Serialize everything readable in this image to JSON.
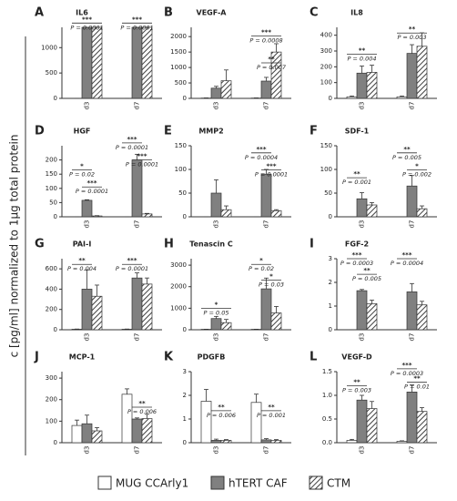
{
  "ylabel": "c [pg/ml] normalized to 1µg total protein",
  "chart_data": [
    {
      "type": "bar",
      "letter": "A",
      "title": "IL6",
      "categories": [
        "d3",
        "d7"
      ],
      "ylim": [
        0,
        1400
      ],
      "yticks": [
        0,
        500,
        1000
      ],
      "series": [
        {
          "name": "MUG CCArly1",
          "color": "#ffffff",
          "values": [
            0,
            0
          ],
          "errors": [
            0,
            0
          ]
        },
        {
          "name": "hTERT CAF",
          "color": "#808080",
          "values": [
            1400,
            1400
          ],
          "errors": [
            0,
            0
          ]
        },
        {
          "name": "CTM",
          "color": "#404040",
          "pattern": "hatch",
          "values": [
            1400,
            1400
          ],
          "errors": [
            0,
            0
          ]
        }
      ],
      "annotations": [
        {
          "stars": "***",
          "label": "P = 0.0001"
        },
        {
          "stars": "***",
          "label": "P = 0.0001"
        }
      ]
    },
    {
      "type": "bar",
      "letter": "B",
      "title": "VEGF-A",
      "categories": [
        "d3",
        "d7"
      ],
      "ylim": [
        0,
        2300
      ],
      "yticks": [
        0,
        500,
        1000,
        1500,
        2000
      ],
      "series": [
        {
          "name": "MUG CCArly1",
          "color": "#ffffff",
          "values": [
            10,
            10
          ],
          "errors": [
            5,
            5
          ]
        },
        {
          "name": "hTERT CAF",
          "color": "#808080",
          "values": [
            330,
            560
          ],
          "errors": [
            60,
            120
          ]
        },
        {
          "name": "CTM",
          "color": "#404040",
          "pattern": "hatch",
          "values": [
            570,
            1500
          ],
          "errors": [
            350,
            270
          ]
        }
      ],
      "annotations": [
        {
          "stars": "**",
          "label": "P = 0.007"
        },
        {
          "stars": "***",
          "label": "P = 0.0008"
        }
      ]
    },
    {
      "type": "bar",
      "letter": "C",
      "title": "IL8",
      "categories": [
        "d3",
        "d7"
      ],
      "ylim": [
        0,
        450
      ],
      "yticks": [
        0,
        100,
        200,
        300,
        400
      ],
      "series": [
        {
          "name": "MUG CCArly1",
          "color": "#ffffff",
          "values": [
            10,
            10
          ],
          "errors": [
            5,
            5
          ]
        },
        {
          "name": "hTERT CAF",
          "color": "#808080",
          "values": [
            160,
            285
          ],
          "errors": [
            45,
            55
          ]
        },
        {
          "name": "CTM",
          "color": "#404040",
          "pattern": "hatch",
          "values": [
            165,
            330
          ],
          "errors": [
            45,
            85
          ]
        }
      ],
      "annotations": [
        {
          "stars": "**",
          "label": "P = 0.004"
        },
        {
          "stars": "**",
          "label": "P = 0.003"
        }
      ]
    },
    {
      "type": "bar",
      "letter": "D",
      "title": "HGF",
      "categories": [
        "d3",
        "d7"
      ],
      "ylim": [
        0,
        250
      ],
      "yticks": [
        0,
        50,
        100,
        150,
        200
      ],
      "series": [
        {
          "name": "MUG CCArly1",
          "color": "#ffffff",
          "values": [
            0,
            0
          ],
          "errors": [
            0,
            0
          ]
        },
        {
          "name": "hTERT CAF",
          "color": "#808080",
          "values": [
            58,
            200
          ],
          "errors": [
            2,
            20
          ]
        },
        {
          "name": "CTM",
          "color": "#404040",
          "pattern": "hatch",
          "values": [
            3,
            10
          ],
          "errors": [
            1,
            2
          ]
        }
      ],
      "annotations": [
        {
          "stars": "*",
          "label": "P = 0.02"
        },
        {
          "stars": "***",
          "label": "P = 0.0001"
        },
        {
          "stars": "***",
          "label": "P = 0.0001"
        },
        {
          "stars": "***",
          "label": "P = 0.0001"
        }
      ]
    },
    {
      "type": "bar",
      "letter": "E",
      "title": "MMP2",
      "categories": [
        "d3",
        "d7"
      ],
      "ylim": [
        0,
        150
      ],
      "yticks": [
        0,
        50,
        100,
        150
      ],
      "series": [
        {
          "name": "MUG CCArly1",
          "color": "#ffffff",
          "values": [
            0,
            0
          ],
          "errors": [
            0,
            0
          ]
        },
        {
          "name": "hTERT CAF",
          "color": "#808080",
          "values": [
            50,
            90
          ],
          "errors": [
            28,
            10
          ]
        },
        {
          "name": "CTM",
          "color": "#404040",
          "pattern": "hatch",
          "values": [
            15,
            13
          ],
          "errors": [
            8,
            2
          ]
        }
      ],
      "annotations": [
        {
          "stars": "***",
          "label": "P = 0.0004"
        },
        {
          "stars": "***",
          "label": "P = 0.0001"
        }
      ]
    },
    {
      "type": "bar",
      "letter": "F",
      "title": "SDF-1",
      "categories": [
        "d3",
        "d7"
      ],
      "ylim": [
        0,
        150
      ],
      "yticks": [
        0,
        50,
        100,
        150
      ],
      "series": [
        {
          "name": "MUG CCArly1",
          "color": "#ffffff",
          "values": [
            0,
            0
          ],
          "errors": [
            0,
            0
          ]
        },
        {
          "name": "hTERT CAF",
          "color": "#808080",
          "values": [
            38,
            65
          ],
          "errors": [
            13,
            22
          ]
        },
        {
          "name": "CTM",
          "color": "#404040",
          "pattern": "hatch",
          "values": [
            25,
            17
          ],
          "errors": [
            5,
            6
          ]
        }
      ],
      "annotations": [
        {
          "stars": "**",
          "label": "P = 0.001"
        },
        {
          "stars": "**",
          "label": "P = 0.005"
        },
        {
          "stars": "*",
          "label": "P = 0.002"
        }
      ]
    },
    {
      "type": "bar",
      "letter": "G",
      "title": "PAI-I",
      "categories": [
        "d3",
        "d7"
      ],
      "ylim": [
        0,
        700
      ],
      "yticks": [
        0,
        200,
        400,
        600
      ],
      "series": [
        {
          "name": "MUG CCArly1",
          "color": "#ffffff",
          "values": [
            5,
            5
          ],
          "errors": [
            2,
            2
          ]
        },
        {
          "name": "hTERT CAF",
          "color": "#808080",
          "values": [
            400,
            510
          ],
          "errors": [
            190,
            50
          ]
        },
        {
          "name": "CTM",
          "color": "#404040",
          "pattern": "hatch",
          "values": [
            330,
            450
          ],
          "errors": [
            110,
            60
          ]
        }
      ],
      "annotations": [
        {
          "stars": "**",
          "label": "P = 0.004"
        },
        {
          "stars": "***",
          "label": "P = 0.0001"
        }
      ]
    },
    {
      "type": "bar",
      "letter": "H",
      "title": "Tenascin C",
      "categories": [
        "d3",
        "d7"
      ],
      "ylim": [
        0,
        3300
      ],
      "yticks": [
        0,
        1000,
        2000,
        3000
      ],
      "series": [
        {
          "name": "MUG CCArly1",
          "color": "#ffffff",
          "values": [
            20,
            20
          ],
          "errors": [
            5,
            5
          ]
        },
        {
          "name": "hTERT CAF",
          "color": "#808080",
          "values": [
            520,
            1900
          ],
          "errors": [
            100,
            500
          ]
        },
        {
          "name": "CTM",
          "color": "#404040",
          "pattern": "hatch",
          "values": [
            330,
            780
          ],
          "errors": [
            150,
            300
          ]
        }
      ],
      "annotations": [
        {
          "stars": "*",
          "label": "P = 0.05"
        },
        {
          "stars": "*",
          "label": "P = 0.02"
        },
        {
          "stars": "*",
          "label": "P = 0.03"
        }
      ]
    },
    {
      "type": "bar",
      "letter": "I",
      "title": "FGF-2",
      "categories": [
        "d3",
        "d7"
      ],
      "ylim": [
        0,
        3
      ],
      "yticks": [
        0,
        1,
        2,
        3
      ],
      "series": [
        {
          "name": "MUG CCArly1",
          "color": "#ffffff",
          "values": [
            0,
            0
          ],
          "errors": [
            0,
            0
          ]
        },
        {
          "name": "hTERT CAF",
          "color": "#808080",
          "values": [
            1.65,
            1.6
          ],
          "errors": [
            0.05,
            0.35
          ]
        },
        {
          "name": "CTM",
          "color": "#404040",
          "pattern": "hatch",
          "values": [
            1.1,
            1.05
          ],
          "errors": [
            0.15,
            0.15
          ]
        }
      ],
      "annotations": [
        {
          "stars": "***",
          "label": "P = 0.0003"
        },
        {
          "stars": "**",
          "label": "P = 0.005"
        },
        {
          "stars": "***",
          "label": "P = 0.0004"
        }
      ]
    },
    {
      "type": "bar",
      "letter": "J",
      "title": "MCP-1",
      "categories": [
        "d3",
        "d7"
      ],
      "ylim": [
        0,
        330
      ],
      "yticks": [
        0,
        100,
        200,
        300
      ],
      "series": [
        {
          "name": "MUG CCArly1",
          "color": "#ffffff",
          "values": [
            80,
            225
          ],
          "errors": [
            25,
            25
          ]
        },
        {
          "name": "hTERT CAF",
          "color": "#808080",
          "values": [
            88,
            110
          ],
          "errors": [
            40,
            5
          ]
        },
        {
          "name": "CTM",
          "color": "#404040",
          "pattern": "hatch",
          "values": [
            55,
            112
          ],
          "errors": [
            15,
            20
          ]
        }
      ],
      "annotations": [
        {
          "stars": "**",
          "label": "P = 0.006"
        }
      ]
    },
    {
      "type": "bar",
      "letter": "K",
      "title": "PDGFB",
      "categories": [
        "d3",
        "d7"
      ],
      "ylim": [
        0,
        3
      ],
      "yticks": [
        0,
        1,
        2,
        3
      ],
      "series": [
        {
          "name": "MUG CCArly1",
          "color": "#ffffff",
          "values": [
            1.75,
            1.7
          ],
          "errors": [
            0.5,
            0.35
          ]
        },
        {
          "name": "hTERT CAF",
          "color": "#808080",
          "values": [
            0.1,
            0.12
          ],
          "errors": [
            0.05,
            0.05
          ]
        },
        {
          "name": "CTM",
          "color": "#404040",
          "pattern": "hatch",
          "values": [
            0.1,
            0.1
          ],
          "errors": [
            0.03,
            0.03
          ]
        }
      ],
      "annotations": [
        {
          "stars": "**",
          "label": "P = 0.006"
        },
        {
          "stars": "**",
          "label": "P = 0.001"
        }
      ]
    },
    {
      "type": "bar",
      "letter": "L",
      "title": "VEGF-D",
      "categories": [
        "d3",
        "d7"
      ],
      "ylim": [
        0,
        1.5
      ],
      "yticks": [
        {
          "value": 0,
          "label": "0.0"
        },
        0.5,
        {
          "value": 1,
          "label": "1.0"
        },
        1.5
      ],
      "series": [
        {
          "name": "MUG CCArly1",
          "color": "#ffffff",
          "values": [
            0.05,
            0.03
          ],
          "errors": [
            0.02,
            0.01
          ]
        },
        {
          "name": "hTERT CAF",
          "color": "#808080",
          "values": [
            0.9,
            1.07
          ],
          "errors": [
            0.1,
            0.15
          ]
        },
        {
          "name": "CTM",
          "color": "#404040",
          "pattern": "hatch",
          "values": [
            0.72,
            0.66
          ],
          "errors": [
            0.15,
            0.08
          ]
        }
      ],
      "annotations": [
        {
          "stars": "**",
          "label": "P = 0.003"
        },
        {
          "stars": "***",
          "label": "P = 0.0003"
        },
        {
          "stars": "**",
          "label": "P = 0.01"
        }
      ]
    }
  ]
}
